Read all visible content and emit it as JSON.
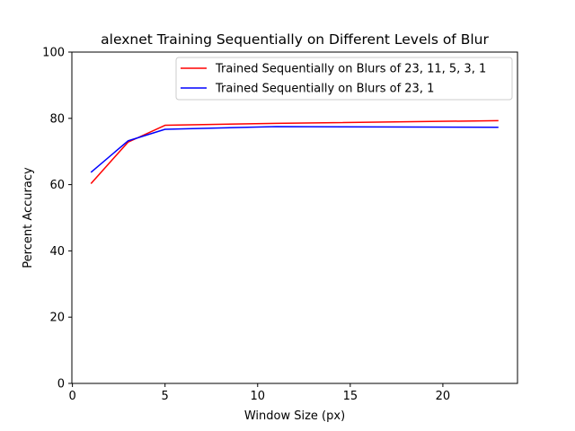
{
  "chart_data": {
    "type": "line",
    "title": "alexnet Training Sequentially on Different Levels of Blur",
    "xlabel": "Window Size (px)",
    "ylabel": "Percent Accuracy",
    "xlim": [
      -0.03,
      24.03
    ],
    "ylim": [
      0,
      100
    ],
    "xticks": [
      0,
      5,
      10,
      15,
      20
    ],
    "yticks": [
      0,
      20,
      40,
      60,
      80,
      100
    ],
    "grid": false,
    "legend_position": "top-right",
    "series": [
      {
        "name": "Trained Sequentially on Blurs of 23, 11, 5, 3, 1",
        "color": "#ff0000",
        "x": [
          1,
          3,
          5,
          11,
          23
        ],
        "y": [
          60.3,
          72.8,
          77.9,
          78.5,
          79.3
        ]
      },
      {
        "name": "Trained Sequentially on Blurs of 23, 1",
        "color": "#0000ff",
        "x": [
          1,
          3,
          5,
          11,
          23
        ],
        "y": [
          63.7,
          73.2,
          76.7,
          77.5,
          77.3
        ]
      }
    ]
  }
}
